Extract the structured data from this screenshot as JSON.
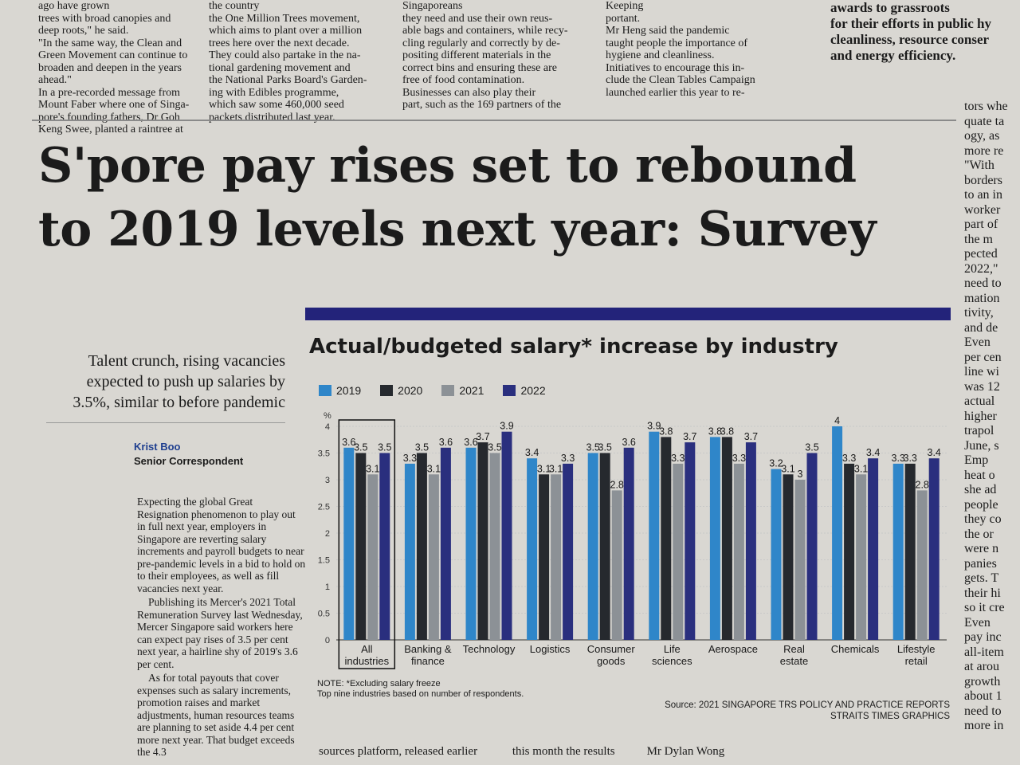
{
  "top_columns": {
    "col1": [
      "ago have grown",
      "trees with broad canopies and",
      "deep roots,\" he said.",
      "\"In the same way, the Clean and",
      "Green Movement can continue to",
      "broaden and deepen in the years",
      "ahead.\"",
      "In a pre-recorded message from",
      "Mount Faber where one of Singa-",
      "pore's founding fathers, Dr Goh",
      "Keng Swee, planted a raintree at"
    ],
    "col2": [
      "the country",
      "the One Million Trees movement,",
      "which aims to plant over a million",
      "trees here over the next decade.",
      "They could also partake in the na-",
      "tional gardening movement and",
      "the National Parks Board's Garden-",
      "ing with Edibles programme,",
      "which saw some 460,000 seed",
      "packets distributed last year."
    ],
    "col3": [
      "Singaporeans",
      "they need and use their own reus-",
      "able bags and containers, while recy-",
      "cling regularly and correctly by de-",
      "positing different materials in the",
      "correct bins and ensuring these are",
      "free of food contamination.",
      "Businesses can also play their",
      "part, such as the 169 partners of the"
    ],
    "col4": [
      "Keeping",
      "portant.",
      "Mr Heng said the pandemic",
      "taught people the importance of",
      "hygiene and cleanliness.",
      "Initiatives to encourage this in-",
      "clude the Clean Tables Campaign",
      "launched earlier this year to re-"
    ],
    "col5": [
      "awards to grassroots",
      "for their efforts in public hy",
      "cleanliness, resource conser",
      "and energy efficiency."
    ]
  },
  "headline": {
    "line1": "S'pore pay rises set to rebound",
    "line2": "to 2019 levels next year: Survey"
  },
  "right_column": [
    "tors whe",
    "quate ta",
    "ogy, as",
    "more re",
    "\"With",
    "borders",
    "to an in",
    "worker",
    "part of",
    "the m",
    "pected",
    "2022,\"",
    "need to",
    "mation",
    "tivity,",
    "and de",
    "Even",
    "per cen",
    "line wi",
    "was 12",
    "actual",
    "higher",
    "trapol",
    "June, s",
    "Emp",
    "heat o",
    "she ad",
    "people",
    "they co",
    "the or",
    "were n",
    "panies",
    "gets. T",
    "their hi",
    "so it cre",
    "Even",
    "pay inc",
    "all-item",
    "at arou",
    "growth",
    "about 1",
    "need to",
    "more in"
  ],
  "subhead": "Talent crunch, rising vacancies expected to push up salaries by 3.5%, similar to before pandemic",
  "byline": {
    "name": "Krist Boo",
    "role": "Senior Correspondent"
  },
  "body": [
    "Expecting the global Great Resignation phenomenon to play out in full next year, employers in Singapore are reverting salary increments and payroll budgets to near pre-pandemic levels in a bid to hold on to their employees, as well as fill vacancies next year.",
    "Publishing its Mercer's 2021 Total Remuneration Survey last Wednesday, Mercer Singapore said workers here can expect pay rises of 3.5 per cent next year, a hairline shy of 2019's 3.6 per cent.",
    "As for total payouts that cover expenses such as salary increments, promotion raises and market adjustments, human resources teams are planning to set aside 4.4 per cent more next year. That budget exceeds the 4.3"
  ],
  "bottom_text": [
    "sources platform, released earlier",
    "this month the results",
    "Mr Dylan Wong"
  ],
  "chart_data": {
    "type": "bar",
    "title": "Actual/budgeted salary* increase by industry",
    "ylabel": "%",
    "ylim": [
      0,
      4
    ],
    "yticks": [
      "0",
      "0.5",
      "1",
      "1.5",
      "2",
      "2.5",
      "3",
      "3.5",
      "4"
    ],
    "categories": [
      "All industries",
      "Banking & finance",
      "Technology",
      "Logistics",
      "Consumer goods",
      "Life sciences",
      "Aerospace",
      "Real estate",
      "Chemicals",
      "Lifestyle retail"
    ],
    "series": [
      {
        "name": "2019",
        "color": "#2f86c9",
        "values": [
          3.6,
          3.3,
          3.6,
          3.4,
          3.5,
          3.9,
          3.8,
          3.2,
          4,
          3.3
        ]
      },
      {
        "name": "2020",
        "color": "#26292e",
        "values": [
          3.5,
          3.5,
          3.7,
          3.1,
          3.5,
          3.8,
          3.8,
          3.1,
          3.3,
          3.3
        ]
      },
      {
        "name": "2021",
        "color": "#8c9196",
        "values": [
          3.1,
          3.1,
          3.5,
          3.1,
          2.8,
          3.3,
          3.3,
          3,
          3.1,
          2.8
        ]
      },
      {
        "name": "2022",
        "color": "#2a2f7e",
        "values": [
          3.5,
          3.6,
          3.9,
          3.3,
          3.6,
          3.7,
          3.7,
          3.5,
          3.4,
          3.4
        ]
      }
    ],
    "highlight_category": "All industries",
    "note": [
      "NOTE: *Excluding salary freeze",
      "Top nine industries based on number of respondents."
    ],
    "source": [
      "Source: 2021 SINGAPORE TRS POLICY AND PRACTICE REPORTS",
      "STRAITS TIMES GRAPHICS"
    ]
  }
}
